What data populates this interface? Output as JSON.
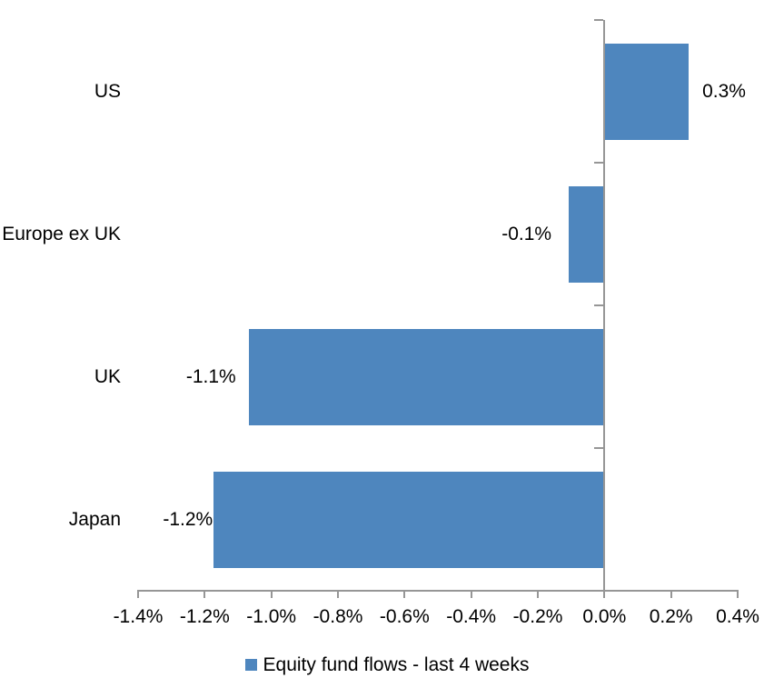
{
  "chart_data": {
    "type": "bar",
    "orientation": "horizontal",
    "title": "",
    "categories": [
      "US",
      "Europe ex UK",
      "UK",
      "Japan"
    ],
    "values": [
      0.3,
      -0.1,
      -1.1,
      -1.2
    ],
    "values_plotted_precise": [
      0.253,
      -0.107,
      -1.068,
      -1.173
    ],
    "data_labels": [
      "0.3%",
      "-0.1%",
      "-1.1%",
      "-1.2%"
    ],
    "x_axis": {
      "min": -1.4,
      "max": 0.4,
      "tick_step": 0.2,
      "tick_labels": [
        "-1.4%",
        "-1.2%",
        "-1.0%",
        "-0.8%",
        "-0.6%",
        "-0.4%",
        "-0.2%",
        "0.0%",
        "0.2%",
        "0.4%"
      ]
    },
    "grid": false,
    "legend_position": "bottom-center",
    "legend": [
      {
        "label": "Equity fund flows - last 4 weeks",
        "color": "#4E86BE"
      }
    ],
    "colors": {
      "bar": "#4E86BE",
      "axis": "#969696",
      "text": "#000000",
      "background": "#FFFFFF"
    }
  }
}
